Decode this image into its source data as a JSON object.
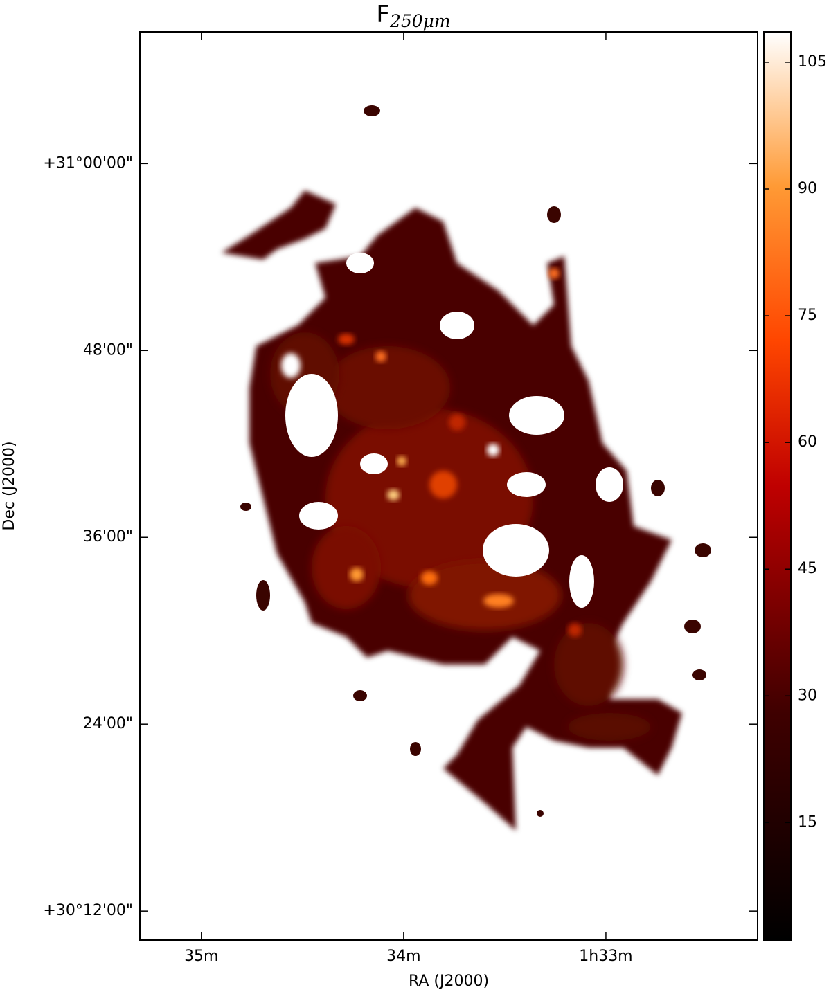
{
  "chart_data": {
    "type": "image",
    "title": "F",
    "title_subscript": "250μm",
    "x_label": "RA (J2000)",
    "y_label": "Dec (J2000)",
    "xlim": [
      35.304,
      32.25
    ],
    "ylim": [
      30.169,
      31.141
    ],
    "xticks": [
      {
        "value": 35,
        "label": "35m"
      },
      {
        "value": 34,
        "label": "34m"
      },
      {
        "value": 33,
        "label": "1h33m"
      }
    ],
    "yticks": [
      {
        "value": 31.0,
        "label": "+31°00'00\""
      },
      {
        "value": 30.8,
        "label": "48'00\""
      },
      {
        "value": 30.6,
        "label": "36'00\""
      },
      {
        "value": 30.4,
        "label": "24'00\""
      },
      {
        "value": 30.2,
        "label": "+30°12'00\""
      }
    ],
    "colormap": "gist_heat",
    "clim": [
      1.1,
      108.6
    ],
    "cticks": [
      15,
      30,
      45,
      60,
      75,
      90,
      105
    ]
  }
}
